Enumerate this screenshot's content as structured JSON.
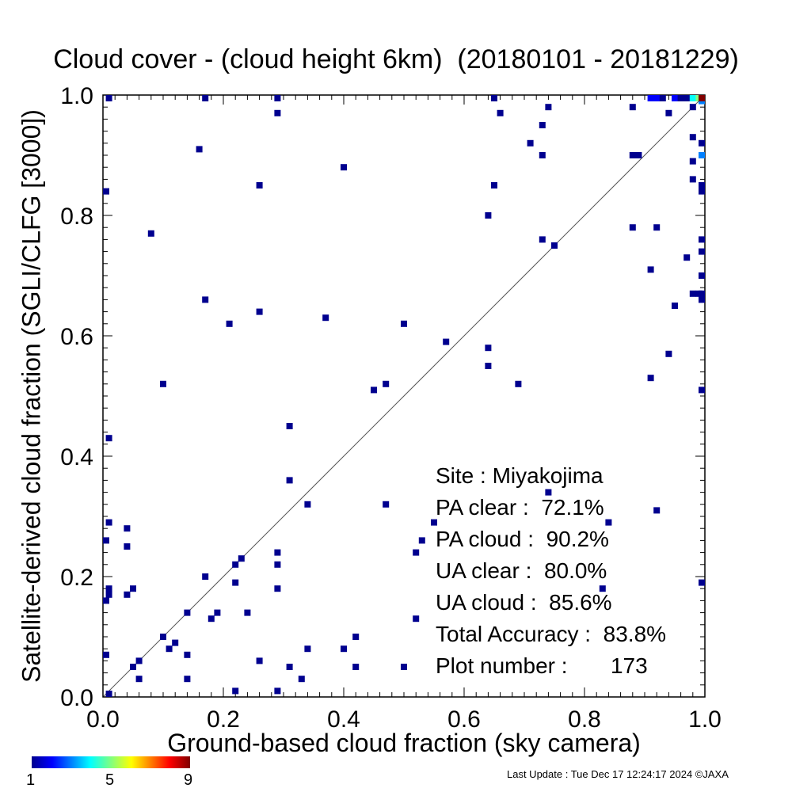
{
  "chart_data": {
    "type": "scatter",
    "title": "Cloud cover - (cloud height 6km)  (20180101 - 20181229)",
    "xlabel": "Ground-based cloud fraction (sky camera)",
    "ylabel": "Satellite-derived cloud fraction (SGLI/CLFG [3000])",
    "xlim": [
      0.0,
      1.0
    ],
    "ylim": [
      0.0,
      1.0
    ],
    "x_ticks": [
      "0.0",
      "0.2",
      "0.4",
      "0.6",
      "0.8",
      "1.0"
    ],
    "y_ticks": [
      "0.0",
      "0.2",
      "0.4",
      "0.6",
      "0.8",
      "1.0"
    ],
    "grid": false,
    "reference_line": "1:1 diagonal",
    "colorbar": {
      "min": 1,
      "max": 9,
      "tick_labels": [
        "1",
        "5",
        "9"
      ]
    },
    "stats": {
      "site": "Site : Miyakojima",
      "pa_clear": "PA clear :  72.1%",
      "pa_cloud": "PA cloud :  90.2%",
      "ua_clear": "UA clear :  80.0%",
      "ua_cloud": "UA cloud :  85.6%",
      "total_accuracy": "Total Accuracy :  83.8%",
      "plot_number": "Plot number :       173"
    },
    "points": [
      {
        "x": 0.01,
        "y": 1.0,
        "c": 1
      },
      {
        "x": 0.17,
        "y": 1.0,
        "c": 1
      },
      {
        "x": 0.29,
        "y": 1.0,
        "c": 1
      },
      {
        "x": 0.65,
        "y": 1.0,
        "c": 1
      },
      {
        "x": 0.29,
        "y": 0.97,
        "c": 1
      },
      {
        "x": 0.66,
        "y": 0.97,
        "c": 1
      },
      {
        "x": 0.74,
        "y": 0.98,
        "c": 1
      },
      {
        "x": 0.73,
        "y": 0.95,
        "c": 1
      },
      {
        "x": 0.88,
        "y": 0.98,
        "c": 1
      },
      {
        "x": 0.16,
        "y": 0.91,
        "c": 1
      },
      {
        "x": 0.71,
        "y": 0.92,
        "c": 1
      },
      {
        "x": 0.73,
        "y": 0.9,
        "c": 1
      },
      {
        "x": 0.88,
        "y": 0.9,
        "c": 1
      },
      {
        "x": 0.89,
        "y": 0.9,
        "c": 1
      },
      {
        "x": 0.4,
        "y": 0.88,
        "c": 1
      },
      {
        "x": 0.26,
        "y": 0.85,
        "c": 1
      },
      {
        "x": 0.65,
        "y": 0.85,
        "c": 1
      },
      {
        "x": 0.0,
        "y": 0.84,
        "c": 1
      },
      {
        "x": 0.64,
        "y": 0.8,
        "c": 1
      },
      {
        "x": 0.88,
        "y": 0.78,
        "c": 1
      },
      {
        "x": 0.92,
        "y": 0.78,
        "c": 1
      },
      {
        "x": 0.08,
        "y": 0.77,
        "c": 1
      },
      {
        "x": 0.73,
        "y": 0.76,
        "c": 1
      },
      {
        "x": 0.75,
        "y": 0.75,
        "c": 1
      },
      {
        "x": 0.97,
        "y": 0.73,
        "c": 1
      },
      {
        "x": 0.91,
        "y": 0.71,
        "c": 1
      },
      {
        "x": 0.17,
        "y": 0.66,
        "c": 1
      },
      {
        "x": 0.95,
        "y": 0.65,
        "c": 1
      },
      {
        "x": 0.26,
        "y": 0.64,
        "c": 1
      },
      {
        "x": 0.37,
        "y": 0.63,
        "c": 1
      },
      {
        "x": 0.21,
        "y": 0.62,
        "c": 1
      },
      {
        "x": 0.5,
        "y": 0.62,
        "c": 1
      },
      {
        "x": 0.57,
        "y": 0.59,
        "c": 1
      },
      {
        "x": 0.64,
        "y": 0.58,
        "c": 1
      },
      {
        "x": 0.94,
        "y": 0.57,
        "c": 1
      },
      {
        "x": 0.64,
        "y": 0.55,
        "c": 1
      },
      {
        "x": 0.91,
        "y": 0.53,
        "c": 1
      },
      {
        "x": 0.1,
        "y": 0.52,
        "c": 1
      },
      {
        "x": 0.47,
        "y": 0.52,
        "c": 1
      },
      {
        "x": 0.69,
        "y": 0.52,
        "c": 1
      },
      {
        "x": 0.45,
        "y": 0.51,
        "c": 1
      },
      {
        "x": 0.31,
        "y": 0.45,
        "c": 1
      },
      {
        "x": 0.01,
        "y": 0.43,
        "c": 1
      },
      {
        "x": 0.31,
        "y": 0.36,
        "c": 1
      },
      {
        "x": 0.74,
        "y": 0.34,
        "c": 1
      },
      {
        "x": 0.34,
        "y": 0.32,
        "c": 1
      },
      {
        "x": 0.47,
        "y": 0.32,
        "c": 1
      },
      {
        "x": 0.92,
        "y": 0.31,
        "c": 1
      },
      {
        "x": 0.55,
        "y": 0.29,
        "c": 1
      },
      {
        "x": 0.84,
        "y": 0.29,
        "c": 1
      },
      {
        "x": 0.01,
        "y": 0.29,
        "c": 1
      },
      {
        "x": 0.04,
        "y": 0.28,
        "c": 1
      },
      {
        "x": 0.0,
        "y": 0.26,
        "c": 1
      },
      {
        "x": 0.53,
        "y": 0.26,
        "c": 1
      },
      {
        "x": 0.04,
        "y": 0.25,
        "c": 1
      },
      {
        "x": 0.29,
        "y": 0.24,
        "c": 1
      },
      {
        "x": 0.52,
        "y": 0.24,
        "c": 1
      },
      {
        "x": 0.23,
        "y": 0.23,
        "c": 1
      },
      {
        "x": 0.22,
        "y": 0.22,
        "c": 1
      },
      {
        "x": 0.29,
        "y": 0.22,
        "c": 1
      },
      {
        "x": 0.17,
        "y": 0.2,
        "c": 1
      },
      {
        "x": 1.0,
        "y": 0.19,
        "c": 1
      },
      {
        "x": 0.22,
        "y": 0.19,
        "c": 1
      },
      {
        "x": 0.05,
        "y": 0.18,
        "c": 1
      },
      {
        "x": 0.29,
        "y": 0.18,
        "c": 1
      },
      {
        "x": 0.83,
        "y": 0.18,
        "c": 1
      },
      {
        "x": 0.01,
        "y": 0.18,
        "c": 1
      },
      {
        "x": 0.01,
        "y": 0.17,
        "c": 1
      },
      {
        "x": 0.04,
        "y": 0.17,
        "c": 1
      },
      {
        "x": 0.0,
        "y": 0.16,
        "c": 1
      },
      {
        "x": 0.14,
        "y": 0.14,
        "c": 1
      },
      {
        "x": 0.19,
        "y": 0.14,
        "c": 1
      },
      {
        "x": 0.24,
        "y": 0.14,
        "c": 1
      },
      {
        "x": 0.18,
        "y": 0.13,
        "c": 1
      },
      {
        "x": 0.52,
        "y": 0.13,
        "c": 1
      },
      {
        "x": 0.1,
        "y": 0.1,
        "c": 1
      },
      {
        "x": 0.42,
        "y": 0.1,
        "c": 1
      },
      {
        "x": 0.12,
        "y": 0.09,
        "c": 1
      },
      {
        "x": 0.11,
        "y": 0.08,
        "c": 1
      },
      {
        "x": 0.34,
        "y": 0.08,
        "c": 1
      },
      {
        "x": 0.4,
        "y": 0.08,
        "c": 1
      },
      {
        "x": 0.0,
        "y": 0.07,
        "c": 1
      },
      {
        "x": 0.14,
        "y": 0.07,
        "c": 1
      },
      {
        "x": 0.06,
        "y": 0.06,
        "c": 1
      },
      {
        "x": 0.26,
        "y": 0.06,
        "c": 1
      },
      {
        "x": 0.05,
        "y": 0.05,
        "c": 1
      },
      {
        "x": 0.31,
        "y": 0.05,
        "c": 1
      },
      {
        "x": 0.42,
        "y": 0.05,
        "c": 1
      },
      {
        "x": 0.5,
        "y": 0.05,
        "c": 1
      },
      {
        "x": 0.06,
        "y": 0.03,
        "c": 1
      },
      {
        "x": 0.14,
        "y": 0.03,
        "c": 1
      },
      {
        "x": 0.33,
        "y": 0.03,
        "c": 1
      },
      {
        "x": 0.22,
        "y": 0.01,
        "c": 1
      },
      {
        "x": 0.29,
        "y": 0.01,
        "c": 1
      },
      {
        "x": 0.01,
        "y": 0.0,
        "c": 1
      },
      {
        "x": 0.98,
        "y": 0.98,
        "c": 1
      },
      {
        "x": 0.98,
        "y": 0.93,
        "c": 1
      },
      {
        "x": 1.0,
        "y": 0.92,
        "c": 1
      },
      {
        "x": 0.98,
        "y": 0.89,
        "c": 1
      },
      {
        "x": 0.98,
        "y": 0.86,
        "c": 1
      },
      {
        "x": 1.0,
        "y": 0.85,
        "c": 1
      },
      {
        "x": 1.0,
        "y": 0.84,
        "c": 1
      },
      {
        "x": 1.0,
        "y": 0.76,
        "c": 1
      },
      {
        "x": 1.0,
        "y": 0.74,
        "c": 1
      },
      {
        "x": 1.0,
        "y": 0.7,
        "c": 1
      },
      {
        "x": 0.98,
        "y": 0.67,
        "c": 1
      },
      {
        "x": 0.99,
        "y": 0.67,
        "c": 1
      },
      {
        "x": 1.0,
        "y": 0.67,
        "c": 1
      },
      {
        "x": 1.0,
        "y": 0.66,
        "c": 1
      },
      {
        "x": 1.0,
        "y": 0.51,
        "c": 1
      },
      {
        "x": 0.94,
        "y": 0.97,
        "c": 1
      },
      {
        "x": 1.0,
        "y": 0.9,
        "c": 3
      },
      {
        "x": 1.0,
        "y": 0.99,
        "c": 3
      },
      {
        "x": 0.91,
        "y": 1.0,
        "c": 2
      },
      {
        "x": 0.92,
        "y": 1.0,
        "c": 2
      },
      {
        "x": 0.93,
        "y": 1.0,
        "c": 1
      },
      {
        "x": 0.95,
        "y": 1.0,
        "c": 2
      },
      {
        "x": 0.96,
        "y": 1.0,
        "c": 1
      },
      {
        "x": 0.97,
        "y": 1.0,
        "c": 1
      },
      {
        "x": 0.98,
        "y": 1.0,
        "c": 4
      },
      {
        "x": 0.99,
        "y": 1.0,
        "c": 5
      },
      {
        "x": 1.0,
        "y": 1.0,
        "c": 9
      }
    ]
  },
  "footer": "Last Update : Tue Dec 17 12:24:17 2024  ©JAXA"
}
